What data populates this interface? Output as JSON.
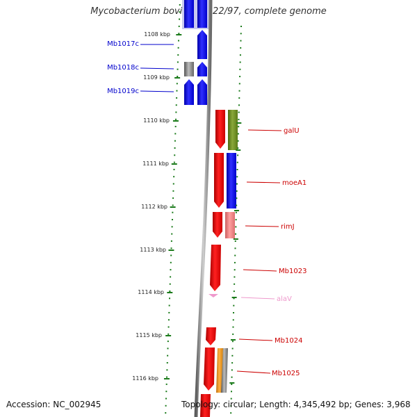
{
  "map": {
    "title": "Mycobacterium bovis AF2122/97, complete genome",
    "accession_text": "Accession: NC_002945",
    "summary_text": "Topology: circular; Length: 4,345,492 bp; Genes: 3,968"
  },
  "colors": {
    "reverse_cds": "#0000ee",
    "forward_cds": "#ee0000",
    "forward_cds_light": "#ee8080",
    "other_gene": "#6b8e23",
    "orange_gene": "#f0a020",
    "gray_gene": "#888888",
    "trna": "#ee99cc",
    "tick": "#1a7a1a",
    "backbone": "#888888"
  },
  "kbp_ticks": [
    "1108 kbp",
    "1109 kbp",
    "1110 kbp",
    "1111 kbp",
    "1112 kbp",
    "1113 kbp",
    "1114 kbp",
    "1115 kbp",
    "1116 kbp"
  ],
  "gene_labels": [
    {
      "text": "Mb1017c",
      "strand": "reverse"
    },
    {
      "text": "Mb1018c",
      "strand": "reverse"
    },
    {
      "text": "Mb1019c",
      "strand": "reverse"
    },
    {
      "text": "galU",
      "strand": "forward"
    },
    {
      "text": "moeA1",
      "strand": "forward"
    },
    {
      "text": "rimJ",
      "strand": "forward"
    },
    {
      "text": "Mb1023",
      "strand": "forward"
    },
    {
      "text": "alaV",
      "strand": "trna"
    },
    {
      "text": "Mb1024",
      "strand": "forward"
    },
    {
      "text": "Mb1025",
      "strand": "forward"
    }
  ]
}
